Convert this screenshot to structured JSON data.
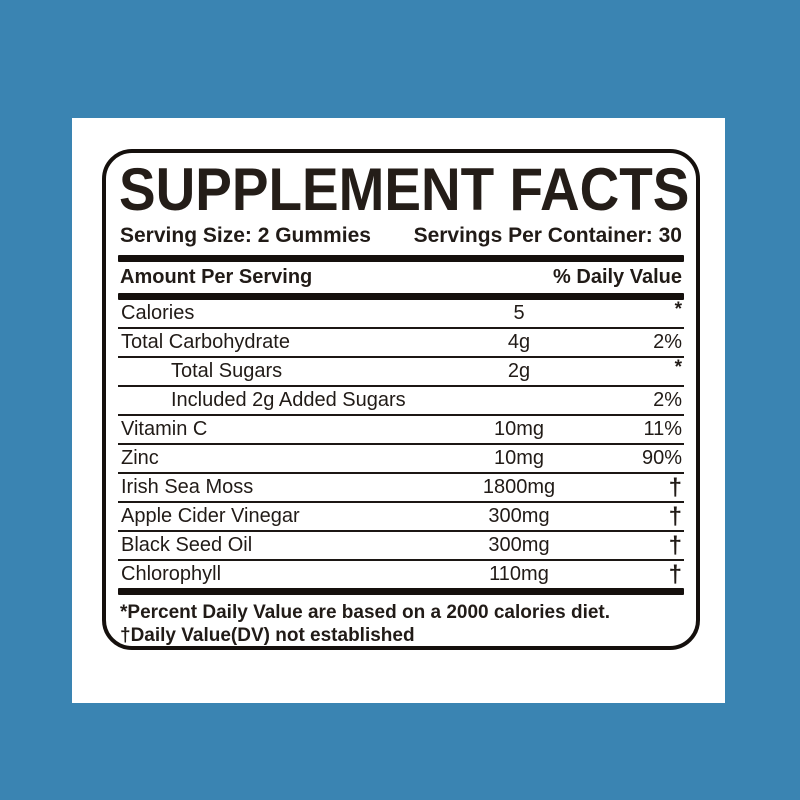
{
  "colors": {
    "background_blue": "#3A84B2",
    "card_white": "#ffffff",
    "label_text": "#211b17",
    "rule_black": "#15100d"
  },
  "label": {
    "title": "SUPPLEMENT FACTS",
    "serving_size": "Serving Size: 2 Gummies",
    "servings_per_container": "Servings Per Container: 30",
    "columns": {
      "amount": "Amount Per Serving",
      "daily_value": "% Daily Value"
    },
    "rows": [
      {
        "name": "Calories",
        "amount": "5",
        "dv": "*",
        "indent": false
      },
      {
        "name": "Total Carbohydrate",
        "amount": "4g",
        "dv": "2%",
        "indent": false
      },
      {
        "name": "Total Sugars",
        "amount": "2g",
        "dv": "*",
        "indent": true
      },
      {
        "name": "Included 2g Added Sugars",
        "amount": "",
        "dv": "2%",
        "indent": true
      },
      {
        "name": "Vitamin C",
        "amount": "10mg",
        "dv": "11%",
        "indent": false
      },
      {
        "name": "Zinc",
        "amount": "10mg",
        "dv": "90%",
        "indent": false
      },
      {
        "name": "Irish Sea Moss",
        "amount": "1800mg",
        "dv": "†",
        "indent": false
      },
      {
        "name": "Apple Cider Vinegar",
        "amount": "300mg",
        "dv": "†",
        "indent": false
      },
      {
        "name": "Black Seed Oil",
        "amount": "300mg",
        "dv": "†",
        "indent": false
      },
      {
        "name": "Chlorophyll",
        "amount": "110mg",
        "dv": "†",
        "indent": false
      }
    ],
    "footnotes": [
      "*Percent Daily Value are based on a 2000 calories diet.",
      "†Daily Value(DV) not established"
    ]
  }
}
